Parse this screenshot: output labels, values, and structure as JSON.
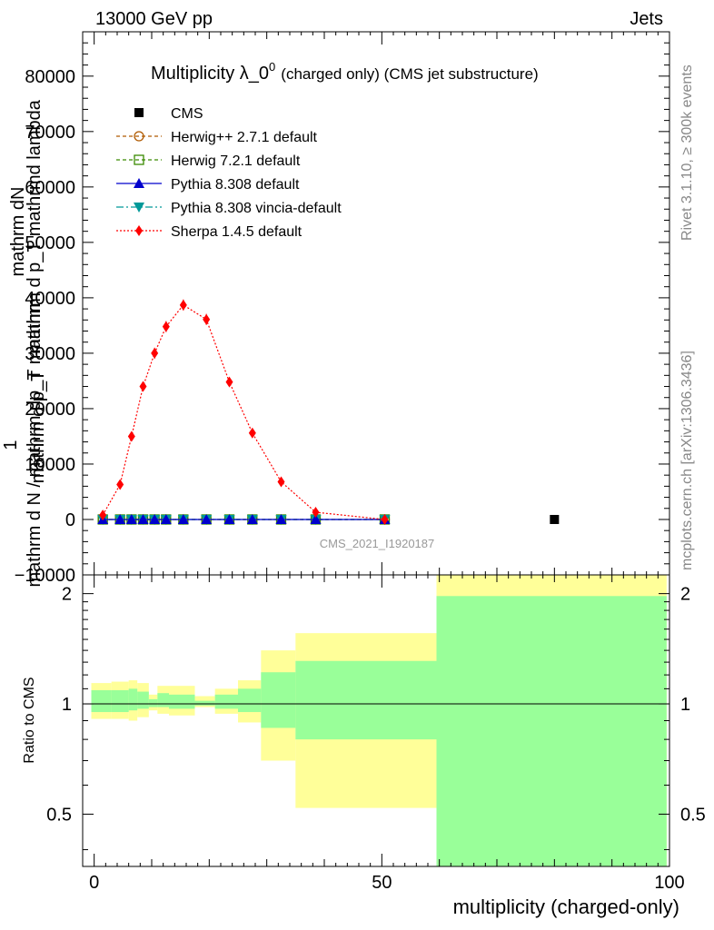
{
  "header": {
    "left": "13000 GeV pp",
    "right": "Jets"
  },
  "side_labels": {
    "rivet": "Rivet 3.1.10, ≥ 300k events",
    "mcplots": "mcplots.cern.ch [arXiv:1306.3436]"
  },
  "colors": {
    "herwig_pp": "#b05a00",
    "herwig7": "#3a8a00",
    "pythia": "#0000cc",
    "pythia_vincia": "#009999",
    "sherpa": "#ff0000",
    "band_outer": "#ffff99",
    "band_inner": "#99ff99"
  },
  "chart_data": [
    {
      "type": "scatter",
      "title": "Multiplicity λ_0",
      "title_sup": "0",
      "title_suffix": "(charged only) (CMS jet substructure)",
      "watermark": "CMS_2021_I1920187",
      "ylabel_lines": [
        "mathrm dN",
        "mathrm d p_T mathrmd lambda",
        "1",
        "mathrm d N / mathrm dp_T mathrm",
        "mathrm d p_T"
      ],
      "xlim": [
        -2,
        100
      ],
      "ylim": [
        -10000,
        88000
      ],
      "yticks": [
        -10000,
        0,
        10000,
        20000,
        30000,
        40000,
        50000,
        60000,
        70000,
        80000
      ],
      "ytick_labels": [
        "−10000",
        "0",
        "10000",
        "20000",
        "30000",
        "40000",
        "50000",
        "60000",
        "70000",
        "80000"
      ],
      "legend": [
        {
          "key": "cms",
          "label": "CMS"
        },
        {
          "key": "herwig_pp",
          "label": "Herwig++ 2.7.1 default"
        },
        {
          "key": "herwig7",
          "label": "Herwig 7.2.1 default"
        },
        {
          "key": "pythia",
          "label": "Pythia 8.308 default"
        },
        {
          "key": "pythia_vincia",
          "label": "Pythia 8.308 vincia-default"
        },
        {
          "key": "sherpa",
          "label": "Sherpa 1.4.5 default"
        }
      ],
      "cms": {
        "x": [
          80
        ],
        "y": [
          0
        ]
      },
      "x": [
        1.5,
        4.5,
        6.5,
        8.5,
        10.5,
        12.5,
        15.5,
        19.5,
        23.5,
        27.5,
        32.5,
        38.5,
        50.5
      ],
      "series": [
        {
          "key": "herwig_pp",
          "name": "Herwig++ 2.7.1 default",
          "values": [
            0,
            0,
            0,
            0,
            0,
            0,
            0,
            0,
            0,
            0,
            0,
            0,
            0
          ]
        },
        {
          "key": "herwig7",
          "name": "Herwig 7.2.1 default",
          "values": [
            0,
            0,
            0,
            0,
            0,
            0,
            0,
            0,
            0,
            0,
            0,
            0,
            0
          ]
        },
        {
          "key": "pythia",
          "name": "Pythia 8.308 default",
          "values": [
            0,
            0,
            0,
            0,
            0,
            0,
            0,
            0,
            0,
            0,
            0,
            0,
            0
          ]
        },
        {
          "key": "pythia_vincia",
          "name": "Pythia 8.308 vincia-default",
          "values": [
            0,
            0,
            0,
            0,
            0,
            0,
            0,
            0,
            0,
            0,
            0,
            0,
            0
          ]
        },
        {
          "key": "sherpa",
          "name": "Sherpa 1.4.5 default",
          "values": [
            800,
            6300,
            15000,
            24000,
            30000,
            34800,
            38700,
            36100,
            24800,
            15600,
            6800,
            1300,
            0
          ],
          "errors": [
            400,
            700,
            800,
            900,
            1000,
            1000,
            1000,
            1000,
            800,
            700,
            500,
            200,
            0
          ]
        }
      ]
    },
    {
      "type": "area",
      "ylabel": "Ratio to CMS",
      "xlabel": "multiplicity (charged-only)",
      "xlim": [
        -2,
        100
      ],
      "ylim": [
        0.36,
        2.25
      ],
      "yticks": [
        0.5,
        1,
        2
      ],
      "ytick_labels": [
        "0.5",
        "1",
        "2"
      ],
      "xticks": [
        0,
        50,
        100
      ],
      "xtick_labels": [
        "0",
        "50",
        "100"
      ],
      "reference": 1,
      "bins": [
        {
          "lo": -0.5,
          "hi": 3,
          "outer": [
            0.91,
            1.14
          ],
          "inner": [
            0.95,
            1.09
          ]
        },
        {
          "lo": 3,
          "hi": 6,
          "outer": [
            0.91,
            1.15
          ],
          "inner": [
            0.95,
            1.09
          ]
        },
        {
          "lo": 6,
          "hi": 7.5,
          "outer": [
            0.9,
            1.16
          ],
          "inner": [
            0.96,
            1.1
          ]
        },
        {
          "lo": 7.5,
          "hi": 9.5,
          "outer": [
            0.92,
            1.14
          ],
          "inner": [
            0.97,
            1.08
          ]
        },
        {
          "lo": 9.5,
          "hi": 11,
          "outer": [
            0.96,
            1.06
          ],
          "inner": [
            0.98,
            1.03
          ]
        },
        {
          "lo": 11,
          "hi": 13,
          "outer": [
            0.94,
            1.12
          ],
          "inner": [
            0.98,
            1.07
          ]
        },
        {
          "lo": 13,
          "hi": 17.5,
          "outer": [
            0.93,
            1.12
          ],
          "inner": [
            0.97,
            1.06
          ]
        },
        {
          "lo": 17.5,
          "hi": 21,
          "outer": [
            0.98,
            1.05
          ],
          "inner": [
            0.99,
            1.02
          ]
        },
        {
          "lo": 21,
          "hi": 25,
          "outer": [
            0.94,
            1.1
          ],
          "inner": [
            0.97,
            1.06
          ]
        },
        {
          "lo": 25,
          "hi": 29,
          "outer": [
            0.89,
            1.16
          ],
          "inner": [
            0.95,
            1.1
          ]
        },
        {
          "lo": 29,
          "hi": 35,
          "outer": [
            0.7,
            1.4
          ],
          "inner": [
            0.86,
            1.22
          ]
        },
        {
          "lo": 35,
          "hi": 59.5,
          "outer": [
            0.52,
            1.56
          ],
          "inner": [
            0.8,
            1.31
          ]
        },
        {
          "lo": 59.5,
          "hi": 99.5,
          "outer": [
            0.36,
            2.25
          ],
          "inner": [
            0.36,
            1.97
          ]
        }
      ]
    }
  ]
}
